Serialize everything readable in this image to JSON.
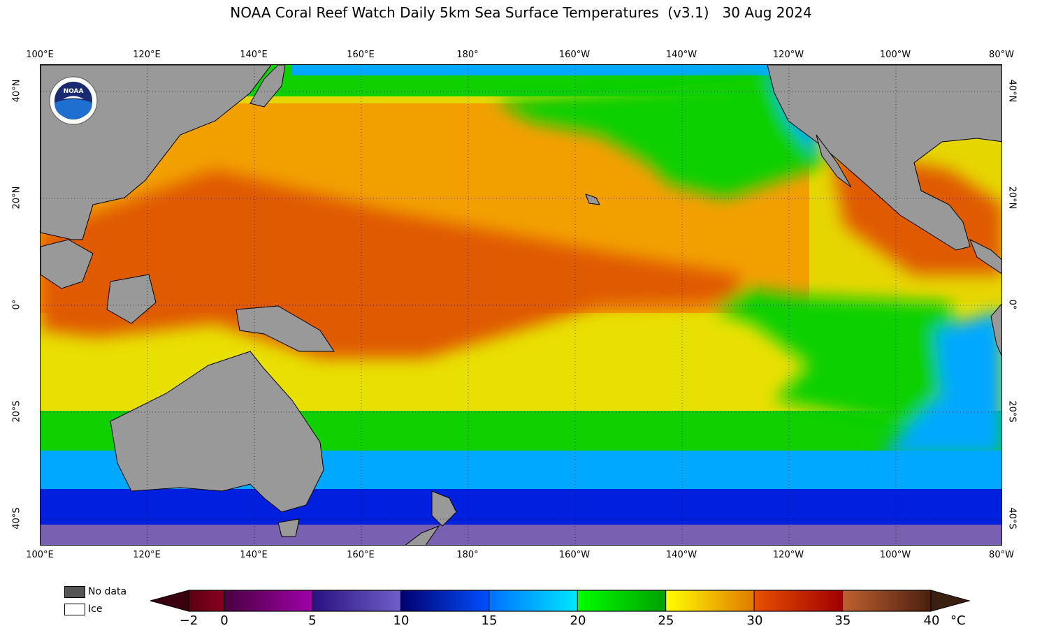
{
  "title": "NOAA Coral Reef Watch Daily 5km Sea Surface Temperatures  (v3.1)   30 Aug 2024",
  "lon_labels": [
    "100°E",
    "120°E",
    "140°E",
    "160°E",
    "180°",
    "160°W",
    "140°W",
    "120°W",
    "100°W",
    "80°W"
  ],
  "lat_labels": [
    "40°N",
    "20°N",
    "0°",
    "20°S",
    "40°S"
  ],
  "legend": {
    "no_data_label": "No data",
    "no_data_color": "#555555",
    "ice_label": "Ice",
    "ice_color": "#ffffff"
  },
  "colorbar": {
    "ticks": [
      "−2",
      "0",
      "5",
      "10",
      "15",
      "20",
      "25",
      "30",
      "35",
      "40"
    ],
    "unit": "°C",
    "segments": [
      {
        "from": -2,
        "to": 0,
        "c1": "#5a0010",
        "c2": "#8a0020"
      },
      {
        "from": 0,
        "to": 5,
        "c1": "#4a0040",
        "c2": "#a000a8"
      },
      {
        "from": 5,
        "to": 10,
        "c1": "#2a1080",
        "c2": "#7060c8"
      },
      {
        "from": 10,
        "to": 15,
        "c1": "#000070",
        "c2": "#0050ff"
      },
      {
        "from": 15,
        "to": 20,
        "c1": "#0070ff",
        "c2": "#00e8ff"
      },
      {
        "from": 20,
        "to": 25,
        "c1": "#00ff00",
        "c2": "#00a000"
      },
      {
        "from": 25,
        "to": 30,
        "c1": "#ffff00",
        "c2": "#e07800"
      },
      {
        "from": 30,
        "to": 35,
        "c1": "#e85000",
        "c2": "#a00000"
      },
      {
        "from": 35,
        "to": 40,
        "c1": "#c06030",
        "c2": "#4a2010"
      }
    ],
    "under_color": "#3a0010",
    "over_color": "#3a2010"
  },
  "colors": {
    "land": "#999999",
    "tropical": "#e05a00",
    "warm": "#f2a000",
    "subtropical": "#e8e000",
    "temperate": "#10d000",
    "cool": "#00a8ff",
    "cold": "#0020e0",
    "polar": "#7a60b0"
  },
  "logo_icon": "noaa-logo-icon"
}
